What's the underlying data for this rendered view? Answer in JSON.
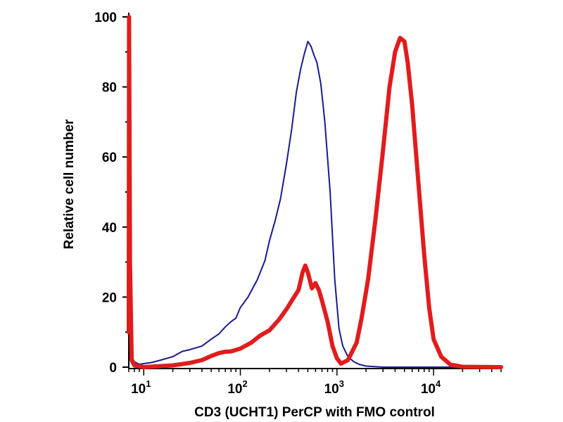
{
  "chart_data": {
    "type": "line",
    "title": "",
    "xlabel": "CD3 (UCHT1) PerCP with FMO control",
    "ylabel": "Relative cell number",
    "x_scale": "log",
    "xlim": [
      7,
      50000
    ],
    "ylim": [
      0,
      100
    ],
    "y_ticks": [
      "0",
      "20",
      "40",
      "60",
      "80",
      "100"
    ],
    "x_ticks": [
      {
        "base": "10",
        "exp": "1"
      },
      {
        "base": "10",
        "exp": "2"
      },
      {
        "base": "10",
        "exp": "3"
      },
      {
        "base": "10",
        "exp": "4"
      }
    ],
    "series": [
      {
        "name": "FMO control",
        "color": "#1a1a8c",
        "x": [
          7,
          7.05,
          7.2,
          7.5,
          8,
          9,
          10,
          12,
          15,
          20,
          25,
          30,
          40,
          50,
          60,
          70,
          80,
          90,
          100,
          120,
          150,
          180,
          200,
          230,
          260,
          300,
          340,
          380,
          420,
          460,
          500,
          540,
          580,
          620,
          680,
          750,
          850,
          950,
          1050,
          1150,
          1300,
          1500,
          1700,
          2000,
          3000,
          5000,
          10000,
          50000
        ],
        "y": [
          10,
          100,
          30,
          3,
          1.5,
          0.8,
          1.0,
          1.3,
          2.0,
          3.0,
          4.5,
          5.0,
          6.0,
          8.0,
          9.5,
          11.5,
          13.0,
          14.0,
          17.0,
          20.0,
          25.0,
          30.5,
          36.0,
          42.0,
          48.0,
          58.0,
          68.0,
          78.5,
          85.0,
          89.5,
          93.0,
          91.5,
          89.0,
          87.0,
          81.0,
          70.0,
          50.0,
          25.0,
          11.0,
          6.0,
          3.0,
          1.5,
          0.8,
          0.3,
          0,
          0,
          0,
          0
        ]
      },
      {
        "name": "CD3 (UCHT1) PerCP",
        "color": "#e11c1c",
        "x": [
          7,
          7.05,
          7.2,
          7.5,
          8,
          10,
          15,
          20,
          30,
          40,
          50,
          60,
          70,
          80,
          100,
          130,
          160,
          200,
          250,
          300,
          350,
          400,
          440,
          470,
          500,
          550,
          600,
          650,
          700,
          800,
          900,
          1000,
          1100,
          1300,
          1600,
          1800,
          2100,
          2500,
          3000,
          3500,
          4000,
          4500,
          5000,
          5400,
          6000,
          7000,
          8000,
          9000,
          10000,
          12000,
          15000,
          20000,
          50000
        ],
        "y": [
          10,
          100,
          30,
          2,
          0.5,
          0,
          0.3,
          0.5,
          1.2,
          2.0,
          3.2,
          4.0,
          4.4,
          4.5,
          5.3,
          7.0,
          9.0,
          10.5,
          13.5,
          16.5,
          19.5,
          22.0,
          27.0,
          29.0,
          27.0,
          22.5,
          24.0,
          22.0,
          19.0,
          13.0,
          6.0,
          2.5,
          1.0,
          2.0,
          7.0,
          14.0,
          25.0,
          42.0,
          62.0,
          80.0,
          90.0,
          94.0,
          93.0,
          87.0,
          75.0,
          52.0,
          32.0,
          17.0,
          8.0,
          3.0,
          0.7,
          0.1,
          0
        ]
      }
    ]
  }
}
